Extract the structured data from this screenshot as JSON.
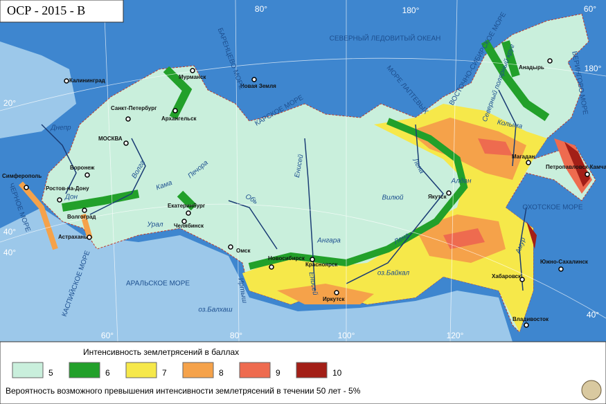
{
  "title": "ОСР - 2015 - В",
  "map": {
    "graticule_labels": [
      "80°",
      "180°",
      "60°",
      "180°",
      "20°",
      "40°",
      "40°",
      "60°",
      "80°",
      "100°",
      "120°",
      "40°"
    ],
    "cities": [
      "Калининград",
      "Мурманск",
      "Новая Земля",
      "Санкт-Петербург",
      "Архангельск",
      "МОСКВА",
      "Воронеж",
      "Симферополь",
      "Ростов-на-Дону",
      "Волгоград",
      "Астрахань",
      "Екатеринбург",
      "Челябинск",
      "Омск",
      "Новосибирск",
      "Красноярск",
      "Иркутск",
      "Якутск",
      "Магадан",
      "Анадырь",
      "Петропавловск-Камчатский",
      "Хабаровск",
      "Южно-Сахалинск",
      "Владивосток"
    ],
    "seas": [
      "СЕВЕРНЫЙ ЛЕДОВИТЫЙ ОКЕАН",
      "БАРЕНЦЕВО МОРЕ",
      "КАРСКОЕ МОРЕ",
      "МОРЕ ЛАПТЕВЫХ",
      "ВОСТОЧНО-СИБИРСКОЕ МОРЕ",
      "БЕРИНГОВО МОРЕ",
      "ОХОТСКОЕ МОРЕ",
      "ЧЕРНОЕ МОРЕ",
      "КАСПИЙСКОЕ МОРЕ",
      "АРАЛЬСКОЕ МОРЕ"
    ],
    "water_labels": [
      "Днепр",
      "Волга",
      "Дон",
      "Кама",
      "Печора",
      "Урал",
      "Обь",
      "Иртыш",
      "Енисей",
      "Енисей",
      "Ангара",
      "Вилюй",
      "Лена",
      "Лена",
      "Алдан",
      "Колыма",
      "Амур",
      "оз.Байкал",
      "оз.Балхаш",
      "Северный полярный круг"
    ]
  },
  "legend": {
    "title": "Интенсивность землетрясений в баллах",
    "items": [
      {
        "label": "5",
        "color": "#c9efdc"
      },
      {
        "label": "6",
        "color": "#22a02a"
      },
      {
        "label": "7",
        "color": "#f6e84a"
      },
      {
        "label": "8",
        "color": "#f5a24a"
      },
      {
        "label": "9",
        "color": "#ee6b4f"
      },
      {
        "label": "10",
        "color": "#a31f17"
      }
    ]
  },
  "footnote": "Вероятность возможного превышения интенсивности землетрясений в течении 50 лет - 5%"
}
